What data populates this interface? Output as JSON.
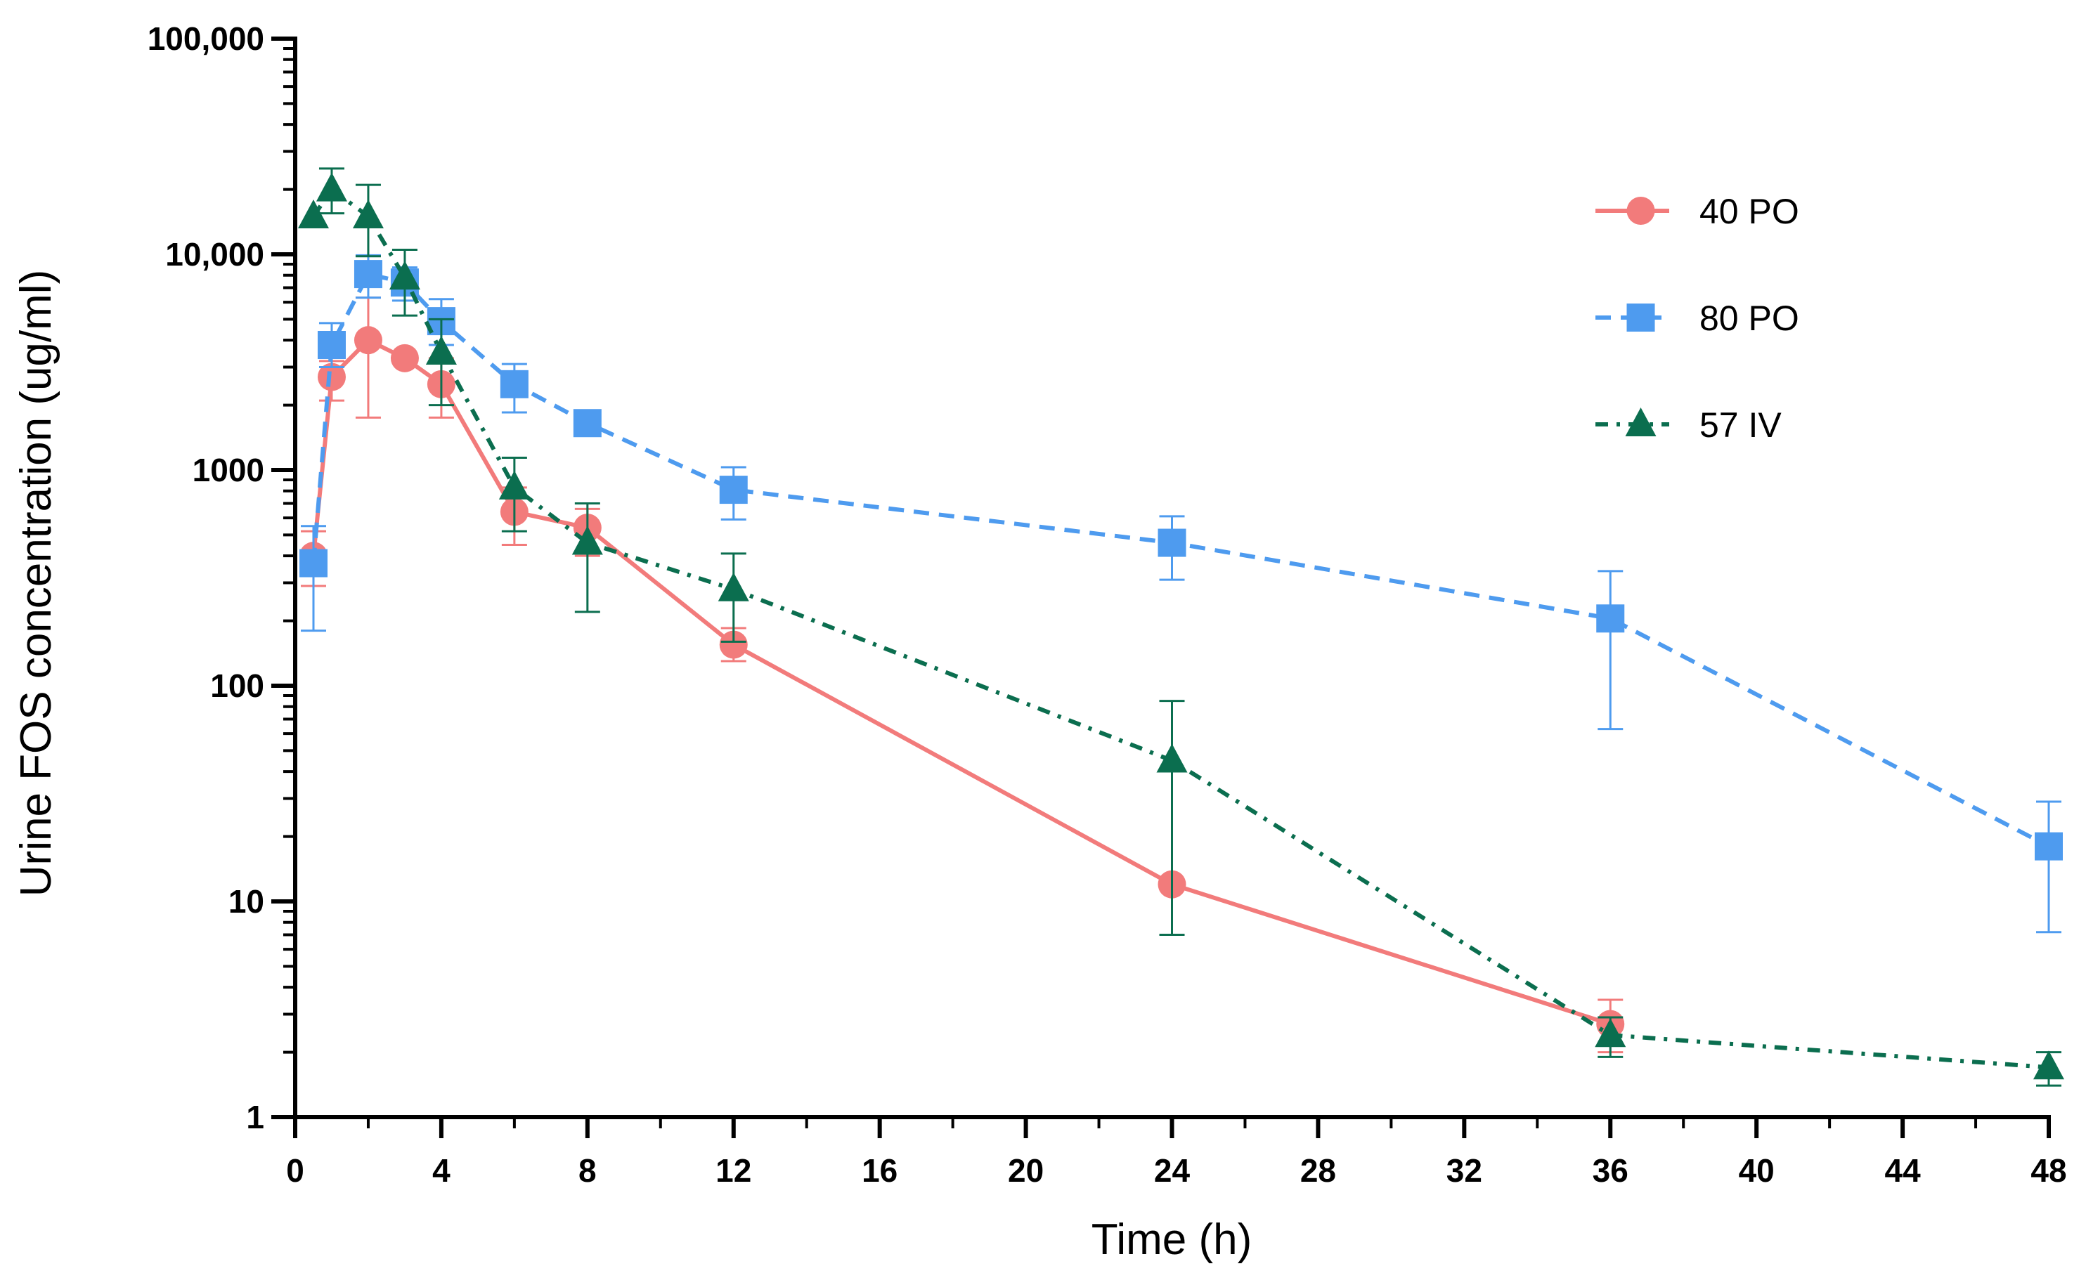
{
  "chart_data": {
    "type": "line",
    "title": "",
    "xlabel": "Time (h)",
    "ylabel": "Urine FOS concentration  (ug/ml)",
    "yscale": "log",
    "xlim": [
      0,
      48
    ],
    "ylim": [
      1,
      100000
    ],
    "xticks": [
      0,
      4,
      8,
      12,
      16,
      20,
      24,
      28,
      32,
      36,
      40,
      44,
      48
    ],
    "xtick_labels": [
      "0",
      "4",
      "8",
      "12",
      "16",
      "20",
      "24",
      "28",
      "32",
      "36",
      "40",
      "44",
      "48"
    ],
    "yticks": [
      1,
      10,
      100,
      1000,
      10000,
      100000
    ],
    "ytick_labels": [
      "1",
      "10",
      "100",
      "1000",
      "10,000",
      "100,000"
    ],
    "legend_position": "top-right",
    "series": [
      {
        "name": "40 PO",
        "color": "#F27B7B",
        "marker": "circle",
        "line_style": "solid",
        "x": [
          0.5,
          1,
          2,
          3,
          4,
          6,
          8,
          12,
          24,
          36
        ],
        "y": [
          400,
          2700,
          4000,
          3300,
          2500,
          640,
          540,
          155,
          12,
          2.7
        ],
        "err_low": [
          290,
          2100,
          1750,
          3300,
          1750,
          450,
          400,
          130,
          7,
          2.0
        ],
        "err_high": [
          520,
          3200,
          6300,
          3300,
          3300,
          830,
          660,
          185,
          12,
          3.5
        ]
      },
      {
        "name": "80 PO",
        "color": "#4E9BEF",
        "marker": "square",
        "line_style": "dashed",
        "x": [
          0.5,
          1,
          2,
          3,
          4,
          6,
          8,
          12,
          24,
          36,
          48
        ],
        "y": [
          370,
          3800,
          8100,
          7400,
          4900,
          2500,
          1650,
          810,
          460,
          205,
          18
        ],
        "err_low": [
          180,
          3000,
          6300,
          6100,
          3800,
          1850,
          1450,
          590,
          310,
          63,
          7.2
        ],
        "err_high": [
          550,
          4800,
          9900,
          8700,
          6200,
          3100,
          1850,
          1030,
          610,
          340,
          29
        ]
      },
      {
        "name": "57 IV",
        "color": "#0B6E4F",
        "marker": "triangle",
        "line_style": "dash-dot",
        "x": [
          0.5,
          1,
          2,
          3,
          4,
          6,
          8,
          12,
          24,
          36,
          48
        ],
        "y": [
          15000,
          20000,
          15000,
          7800,
          3500,
          830,
          460,
          280,
          45,
          2.4,
          1.7
        ],
        "err_low": [
          15000,
          15500,
          9800,
          5200,
          2000,
          520,
          220,
          160,
          7,
          1.9,
          1.4
        ],
        "err_high": [
          15000,
          25000,
          21000,
          10500,
          5000,
          1140,
          700,
          410,
          85,
          2.9,
          2.0
        ]
      }
    ]
  }
}
